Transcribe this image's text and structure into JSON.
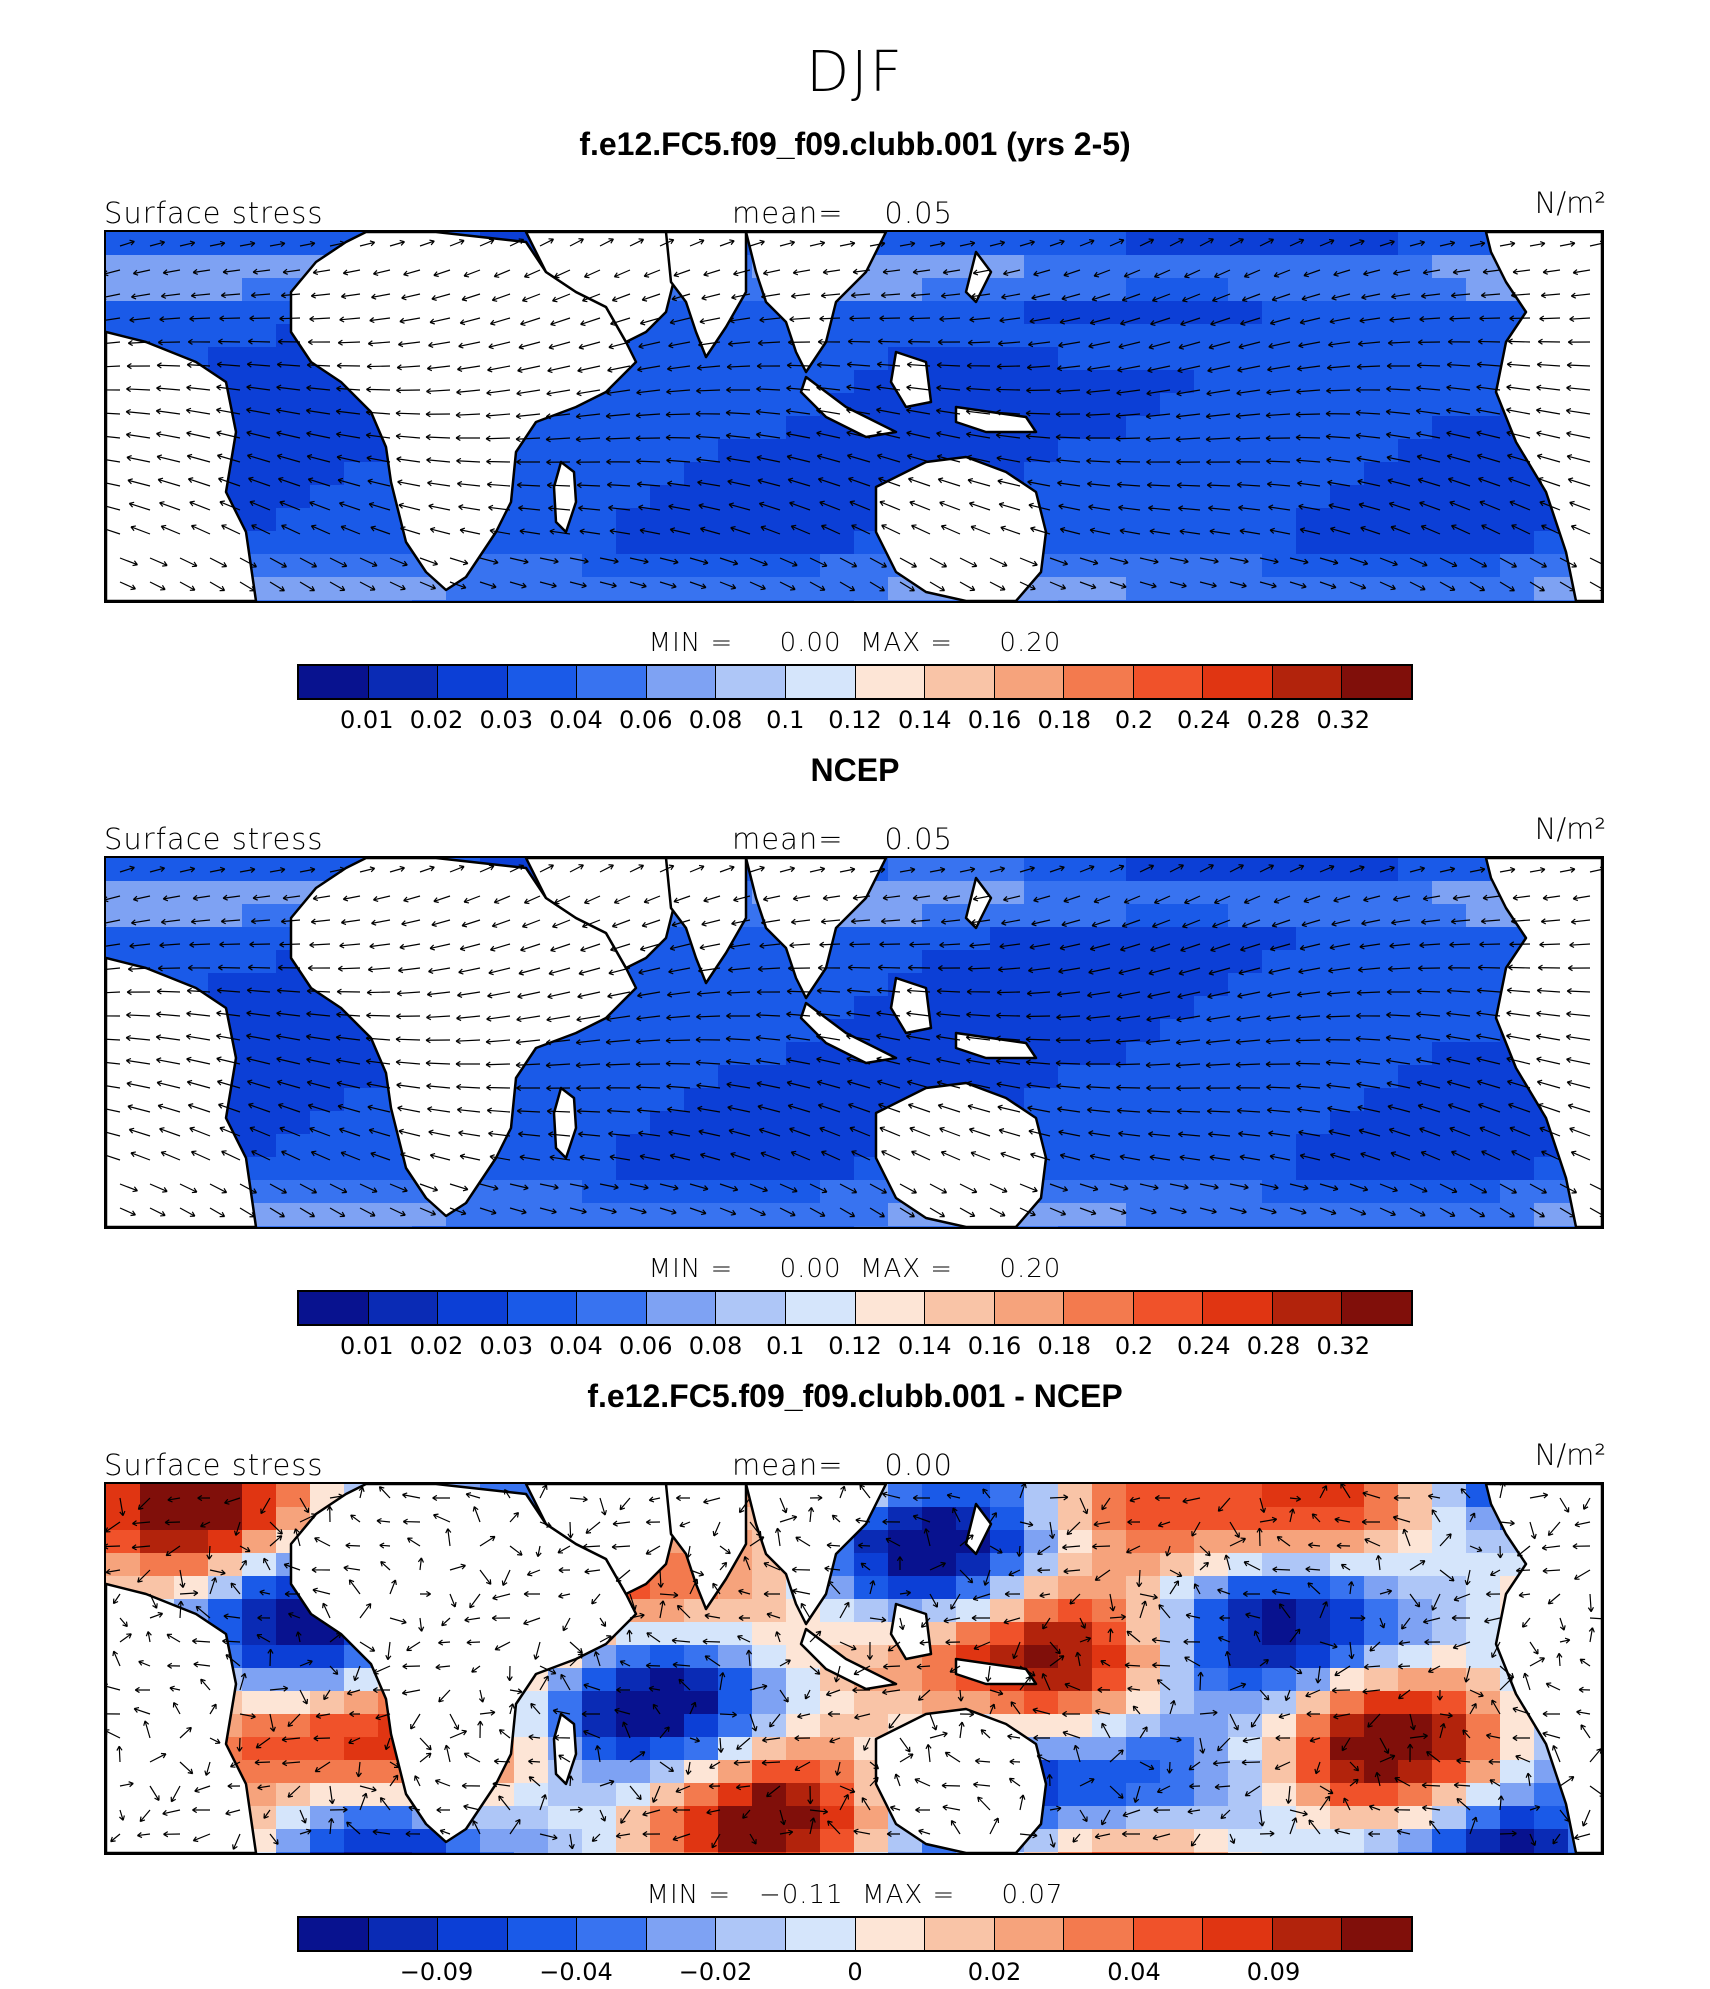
{
  "figure": {
    "title": "DJF",
    "variable_label": "Surface stress",
    "units_label": "N/m²"
  },
  "panels": [
    {
      "title": "f.e12.FC5.f09_f09.clubb.001 (yrs 2-5)",
      "mean_text": "mean=    0.05",
      "minmax_text": "MIN =     0.00  MAX =     0.20",
      "colorbar_ticks": [
        "0.01",
        "0.02",
        "0.03",
        "0.04",
        "0.06",
        "0.08",
        "0.1",
        "0.12",
        "0.14",
        "0.16",
        "0.18",
        "0.2",
        "0.24",
        "0.28",
        "0.32"
      ],
      "field": "model"
    },
    {
      "title": "NCEP",
      "mean_text": "mean=    0.05",
      "minmax_text": "MIN =     0.00  MAX =     0.20",
      "colorbar_ticks": [
        "0.01",
        "0.02",
        "0.03",
        "0.04",
        "0.06",
        "0.08",
        "0.1",
        "0.12",
        "0.14",
        "0.16",
        "0.18",
        "0.2",
        "0.24",
        "0.28",
        "0.32"
      ],
      "field": "obs"
    },
    {
      "title": "f.e12.FC5.f09_f09.clubb.001 - NCEP",
      "mean_text": "mean=    0.00",
      "minmax_text": "MIN =   −0.11  MAX =     0.07",
      "colorbar_ticks": [
        "−0.09",
        "−0.04",
        "−0.02",
        "0",
        "0.02",
        "0.04",
        "0.09"
      ],
      "field": "diff"
    }
  ],
  "colorbar_colors": [
    "#08128f",
    "#0a2bb5",
    "#0c3fd6",
    "#1a5ae8",
    "#3873f0",
    "#7ea2f3",
    "#aec6f7",
    "#d5e5fb",
    "#fde5d6",
    "#f9c4a7",
    "#f6a37c",
    "#f37a4e",
    "#f0522a",
    "#e03512",
    "#b2230c",
    "#800f0a"
  ]
}
